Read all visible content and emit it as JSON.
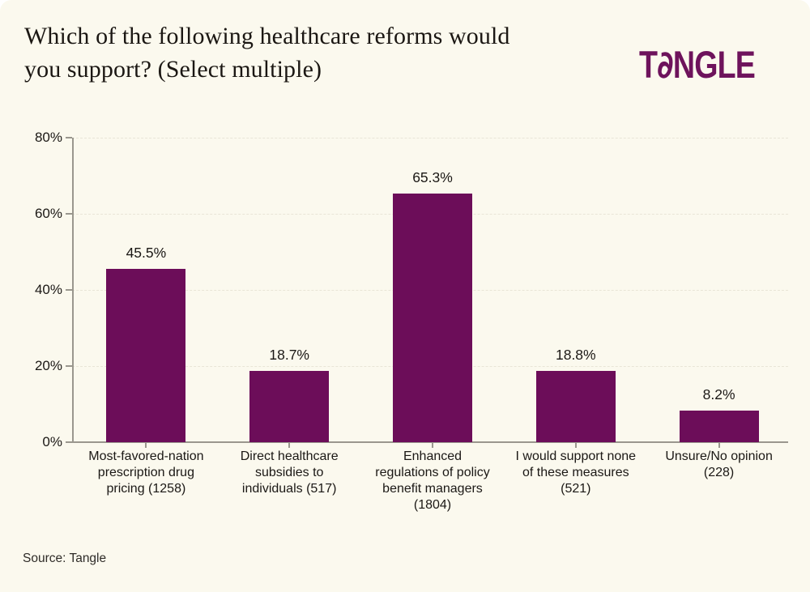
{
  "page": {
    "card_background": "#FBF9EE",
    "outer_background": "#FFFFFF"
  },
  "header": {
    "title_line1": "Which of the following healthcare reforms would",
    "title_line2": "you support? (Select multiple)",
    "logo": {
      "brand": "Tangle",
      "part_t": "T",
      "part_a": "∂",
      "part_rest": "NGLE",
      "color": "#6E135C"
    }
  },
  "chart_data": {
    "type": "bar",
    "title": "Which of the following healthcare reforms would you support? (Select multiple)",
    "categories": [
      "Most-favored-nation\nprescription drug\npricing (1258)",
      "Direct healthcare\nsubsidies to\nindividuals (517)",
      "Enhanced\nregulations of policy\nbenefit managers\n(1804)",
      "I would support none\nof these measures\n(521)",
      "Unsure/No opinion\n(228)"
    ],
    "counts": [
      1258,
      517,
      1804,
      521,
      228
    ],
    "values": [
      45.5,
      18.7,
      65.3,
      18.8,
      8.2
    ],
    "value_labels": [
      "45.5%",
      "18.7%",
      "65.3%",
      "18.8%",
      "8.2%"
    ],
    "xlabel": "",
    "ylabel": "",
    "ylim": [
      0,
      80
    ],
    "ytick_values": [
      0,
      20,
      40,
      60,
      80
    ],
    "ytick_labels": [
      "0%",
      "20%",
      "40%",
      "60%",
      "80%"
    ],
    "bar_color": "#6C0D59",
    "grid": "horizontal dashed at y ticks",
    "legend": "none"
  },
  "footer": {
    "source": "Source: Tangle"
  }
}
